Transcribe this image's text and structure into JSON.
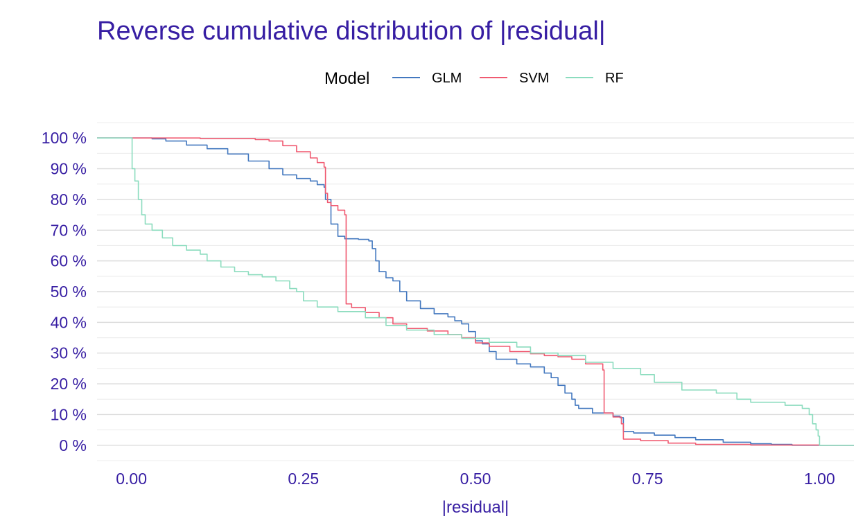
{
  "chart_data": {
    "type": "line",
    "step": true,
    "title": "Reverse cumulative distribution of |residual|",
    "xlabel": "|residual|",
    "ylabel": "",
    "xlim": [
      -0.05,
      1.05
    ],
    "ylim": [
      -0.05,
      1.05
    ],
    "x_ticks": [
      0.0,
      0.25,
      0.5,
      0.75,
      1.0
    ],
    "x_tick_labels": [
      "0.00",
      "0.25",
      "0.50",
      "0.75",
      "1.00"
    ],
    "y_ticks": [
      0,
      0.1,
      0.2,
      0.3,
      0.4,
      0.5,
      0.6,
      0.7,
      0.8,
      0.9,
      1.0
    ],
    "y_tick_labels": [
      "0 %",
      "10 %",
      "20 %",
      "30 %",
      "40 %",
      "50 %",
      "60 %",
      "70 %",
      "80 %",
      "90 %",
      "100 %"
    ],
    "grid": true,
    "legend": {
      "title": "Model",
      "position": "top"
    },
    "series": [
      {
        "name": "GLM",
        "color": "#4378bf",
        "points": [
          [
            -0.05,
            1.0
          ],
          [
            0.0,
            1.0
          ],
          [
            0.03,
            0.997
          ],
          [
            0.05,
            0.99
          ],
          [
            0.08,
            0.977
          ],
          [
            0.11,
            0.965
          ],
          [
            0.14,
            0.948
          ],
          [
            0.17,
            0.925
          ],
          [
            0.2,
            0.9
          ],
          [
            0.22,
            0.88
          ],
          [
            0.24,
            0.868
          ],
          [
            0.26,
            0.86
          ],
          [
            0.27,
            0.848
          ],
          [
            0.28,
            0.84
          ],
          [
            0.282,
            0.8
          ],
          [
            0.29,
            0.72
          ],
          [
            0.3,
            0.68
          ],
          [
            0.31,
            0.672
          ],
          [
            0.33,
            0.67
          ],
          [
            0.345,
            0.665
          ],
          [
            0.35,
            0.64
          ],
          [
            0.355,
            0.6
          ],
          [
            0.36,
            0.565
          ],
          [
            0.37,
            0.545
          ],
          [
            0.38,
            0.535
          ],
          [
            0.39,
            0.5
          ],
          [
            0.4,
            0.47
          ],
          [
            0.42,
            0.445
          ],
          [
            0.44,
            0.428
          ],
          [
            0.46,
            0.418
          ],
          [
            0.47,
            0.405
          ],
          [
            0.48,
            0.395
          ],
          [
            0.49,
            0.37
          ],
          [
            0.5,
            0.34
          ],
          [
            0.51,
            0.33
          ],
          [
            0.52,
            0.305
          ],
          [
            0.53,
            0.28
          ],
          [
            0.56,
            0.265
          ],
          [
            0.58,
            0.255
          ],
          [
            0.6,
            0.235
          ],
          [
            0.61,
            0.22
          ],
          [
            0.62,
            0.195
          ],
          [
            0.63,
            0.17
          ],
          [
            0.64,
            0.15
          ],
          [
            0.645,
            0.13
          ],
          [
            0.65,
            0.12
          ],
          [
            0.67,
            0.105
          ],
          [
            0.7,
            0.095
          ],
          [
            0.71,
            0.09
          ],
          [
            0.715,
            0.045
          ],
          [
            0.73,
            0.04
          ],
          [
            0.76,
            0.033
          ],
          [
            0.79,
            0.025
          ],
          [
            0.82,
            0.018
          ],
          [
            0.86,
            0.01
          ],
          [
            0.9,
            0.005
          ],
          [
            0.93,
            0.003
          ],
          [
            0.96,
            0.0
          ],
          [
            1.05,
            0.0
          ]
        ]
      },
      {
        "name": "SVM",
        "color": "#f05a71",
        "points": [
          [
            -0.05,
            1.0
          ],
          [
            0.0,
            1.0
          ],
          [
            0.1,
            0.998
          ],
          [
            0.18,
            0.995
          ],
          [
            0.2,
            0.99
          ],
          [
            0.22,
            0.975
          ],
          [
            0.24,
            0.955
          ],
          [
            0.26,
            0.935
          ],
          [
            0.27,
            0.92
          ],
          [
            0.28,
            0.905
          ],
          [
            0.282,
            0.82
          ],
          [
            0.285,
            0.79
          ],
          [
            0.29,
            0.78
          ],
          [
            0.3,
            0.765
          ],
          [
            0.31,
            0.75
          ],
          [
            0.312,
            0.46
          ],
          [
            0.32,
            0.448
          ],
          [
            0.34,
            0.432
          ],
          [
            0.36,
            0.415
          ],
          [
            0.38,
            0.395
          ],
          [
            0.4,
            0.38
          ],
          [
            0.43,
            0.372
          ],
          [
            0.46,
            0.36
          ],
          [
            0.48,
            0.35
          ],
          [
            0.5,
            0.333
          ],
          [
            0.52,
            0.322
          ],
          [
            0.55,
            0.305
          ],
          [
            0.58,
            0.298
          ],
          [
            0.6,
            0.292
          ],
          [
            0.62,
            0.288
          ],
          [
            0.64,
            0.28
          ],
          [
            0.66,
            0.265
          ],
          [
            0.685,
            0.245
          ],
          [
            0.687,
            0.105
          ],
          [
            0.7,
            0.092
          ],
          [
            0.712,
            0.07
          ],
          [
            0.715,
            0.02
          ],
          [
            0.74,
            0.015
          ],
          [
            0.78,
            0.007
          ],
          [
            0.82,
            0.003
          ],
          [
            0.9,
            0.001
          ],
          [
            1.0,
            0.0
          ],
          [
            1.05,
            0.0
          ]
        ]
      },
      {
        "name": "RF",
        "color": "#8bdcbe",
        "points": [
          [
            -0.05,
            1.0
          ],
          [
            0.0,
            1.0
          ],
          [
            0.001,
            0.9
          ],
          [
            0.005,
            0.86
          ],
          [
            0.01,
            0.8
          ],
          [
            0.015,
            0.75
          ],
          [
            0.02,
            0.72
          ],
          [
            0.03,
            0.7
          ],
          [
            0.045,
            0.675
          ],
          [
            0.06,
            0.65
          ],
          [
            0.08,
            0.635
          ],
          [
            0.1,
            0.622
          ],
          [
            0.11,
            0.6
          ],
          [
            0.13,
            0.58
          ],
          [
            0.15,
            0.565
          ],
          [
            0.17,
            0.555
          ],
          [
            0.19,
            0.548
          ],
          [
            0.21,
            0.535
          ],
          [
            0.23,
            0.51
          ],
          [
            0.24,
            0.5
          ],
          [
            0.25,
            0.47
          ],
          [
            0.27,
            0.45
          ],
          [
            0.3,
            0.435
          ],
          [
            0.34,
            0.415
          ],
          [
            0.37,
            0.39
          ],
          [
            0.4,
            0.375
          ],
          [
            0.44,
            0.36
          ],
          [
            0.48,
            0.348
          ],
          [
            0.52,
            0.335
          ],
          [
            0.56,
            0.32
          ],
          [
            0.58,
            0.3
          ],
          [
            0.62,
            0.292
          ],
          [
            0.66,
            0.27
          ],
          [
            0.7,
            0.25
          ],
          [
            0.74,
            0.23
          ],
          [
            0.76,
            0.205
          ],
          [
            0.8,
            0.18
          ],
          [
            0.85,
            0.17
          ],
          [
            0.88,
            0.15
          ],
          [
            0.9,
            0.14
          ],
          [
            0.95,
            0.13
          ],
          [
            0.975,
            0.12
          ],
          [
            0.985,
            0.1
          ],
          [
            0.99,
            0.07
          ],
          [
            0.995,
            0.05
          ],
          [
            0.998,
            0.03
          ],
          [
            1.0,
            0.0
          ],
          [
            1.05,
            0.0
          ]
        ]
      }
    ]
  }
}
